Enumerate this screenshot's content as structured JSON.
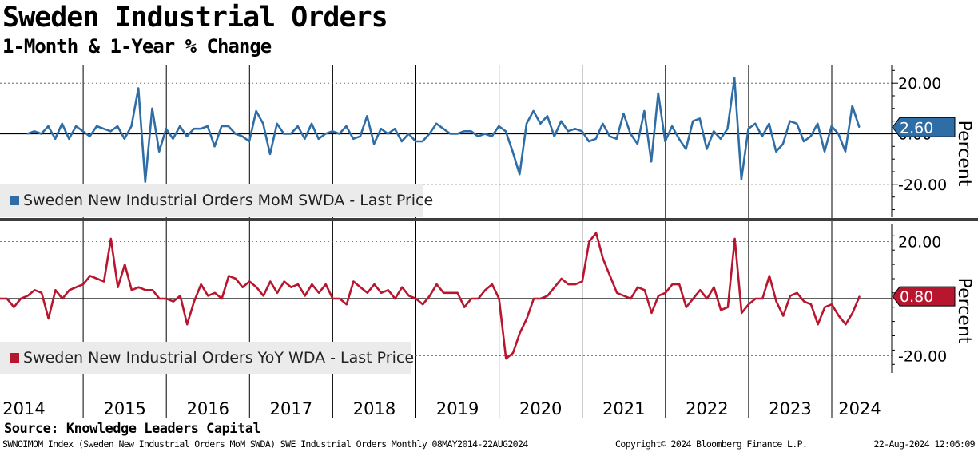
{
  "title": "Sweden Industrial Orders",
  "subtitle": "1-Month & 1-Year % Change",
  "source": "Source: Knowledge Leaders Capital",
  "footer": {
    "left": "SWNOIMOM Index (Sweden New Industrial Orders MoM SWDA) SWE Industrial Orders  Monthly 08MAY2014-22AUG2024",
    "middle": "Copyright© 2024 Bloomberg Finance L.P.",
    "right": "22-Aug-2024 12:06:09"
  },
  "colors": {
    "mom": "#2e6da6",
    "yoy": "#b8162e"
  },
  "chart_data": [
    {
      "type": "line",
      "title": "Sweden New Industrial Orders MoM SWDA - Last Price",
      "legend": "Sweden New Industrial Orders MoM SWDA - Last Price",
      "ylabel": "Percent",
      "yticks": [
        20,
        0,
        -20
      ],
      "ytick_labels": [
        "20.00",
        "0.00",
        "-20.00"
      ],
      "ylim": [
        -33,
        27
      ],
      "last_value": 2.6,
      "last_label": "2.60",
      "start": 2014.33,
      "step": 0.08333,
      "values": [
        0,
        1,
        0,
        3,
        -2,
        4,
        -2,
        3,
        1,
        -1,
        3,
        2,
        1,
        3,
        -2,
        3,
        18,
        -19,
        10,
        -7,
        2,
        -2,
        3,
        -1,
        2,
        2,
        3,
        -5,
        3,
        3,
        0,
        -1,
        -3,
        9,
        4,
        -8,
        4,
        0,
        0,
        3,
        -2,
        4,
        -2,
        0,
        1,
        0,
        3,
        -2,
        -1,
        7,
        -4,
        2,
        0,
        2,
        -3,
        0,
        -3,
        -3,
        0,
        4,
        2,
        0,
        0,
        1,
        1,
        -1,
        0,
        -1,
        3,
        1,
        -7,
        -16,
        4,
        9,
        4,
        7,
        -1,
        5,
        1,
        2,
        1,
        -3,
        -2,
        4,
        -1,
        -2,
        8,
        0,
        -4,
        9,
        -11,
        16,
        -3,
        3,
        -2,
        -6,
        5,
        6,
        -6,
        1,
        -2,
        2,
        22,
        -18,
        2,
        4,
        -1,
        4,
        -7,
        -4,
        5,
        4,
        -3,
        -1,
        4,
        -7,
        3,
        0,
        -7,
        11,
        2.6
      ]
    },
    {
      "type": "line",
      "title": "Sweden New Industrial Orders YoY WDA - Last Price",
      "legend": "Sweden New Industrial Orders YoY WDA - Last Price",
      "ylabel": "Percent",
      "yticks": [
        20,
        0,
        -20
      ],
      "ytick_labels": [
        "20.00",
        "0.00",
        "-20.00"
      ],
      "ylim": [
        -26,
        26
      ],
      "last_value": 0.8,
      "last_label": "0.80",
      "start": 2014.0,
      "step": 0.08333,
      "values": [
        0,
        0,
        -3,
        0,
        1,
        3,
        2,
        -7,
        3,
        0,
        3,
        4,
        5,
        8,
        7,
        6,
        21,
        4,
        12,
        3,
        4,
        3,
        3,
        0,
        0,
        -1,
        1,
        -9,
        -1,
        5,
        1,
        2,
        0,
        8,
        7,
        4,
        6,
        4,
        1,
        6,
        2,
        6,
        4,
        5,
        1,
        5,
        2,
        5,
        0,
        0,
        -2,
        6,
        4,
        2,
        5,
        2,
        3,
        0,
        4,
        1,
        0,
        -2,
        1,
        5,
        2,
        2,
        2,
        -3,
        0,
        0,
        3,
        5,
        0,
        -21,
        -19,
        -12,
        -7,
        0,
        0,
        1,
        4,
        7,
        5,
        5,
        6,
        20,
        23,
        14,
        8,
        2,
        1,
        0,
        4,
        3,
        -5,
        1,
        2,
        5,
        5,
        -3,
        0,
        3,
        0,
        4,
        -4,
        -3,
        21,
        -5,
        -2,
        0,
        0,
        8,
        -1,
        -6,
        1,
        2,
        -1,
        -2,
        -9,
        -3,
        -2,
        -6,
        -9,
        -5,
        0.8
      ]
    }
  ],
  "x_axis": {
    "years": [
      "2014",
      "2015",
      "2016",
      "2017",
      "2018",
      "2019",
      "2020",
      "2021",
      "2022",
      "2023",
      "2024"
    ],
    "range": [
      2014.0,
      2024.72
    ]
  }
}
